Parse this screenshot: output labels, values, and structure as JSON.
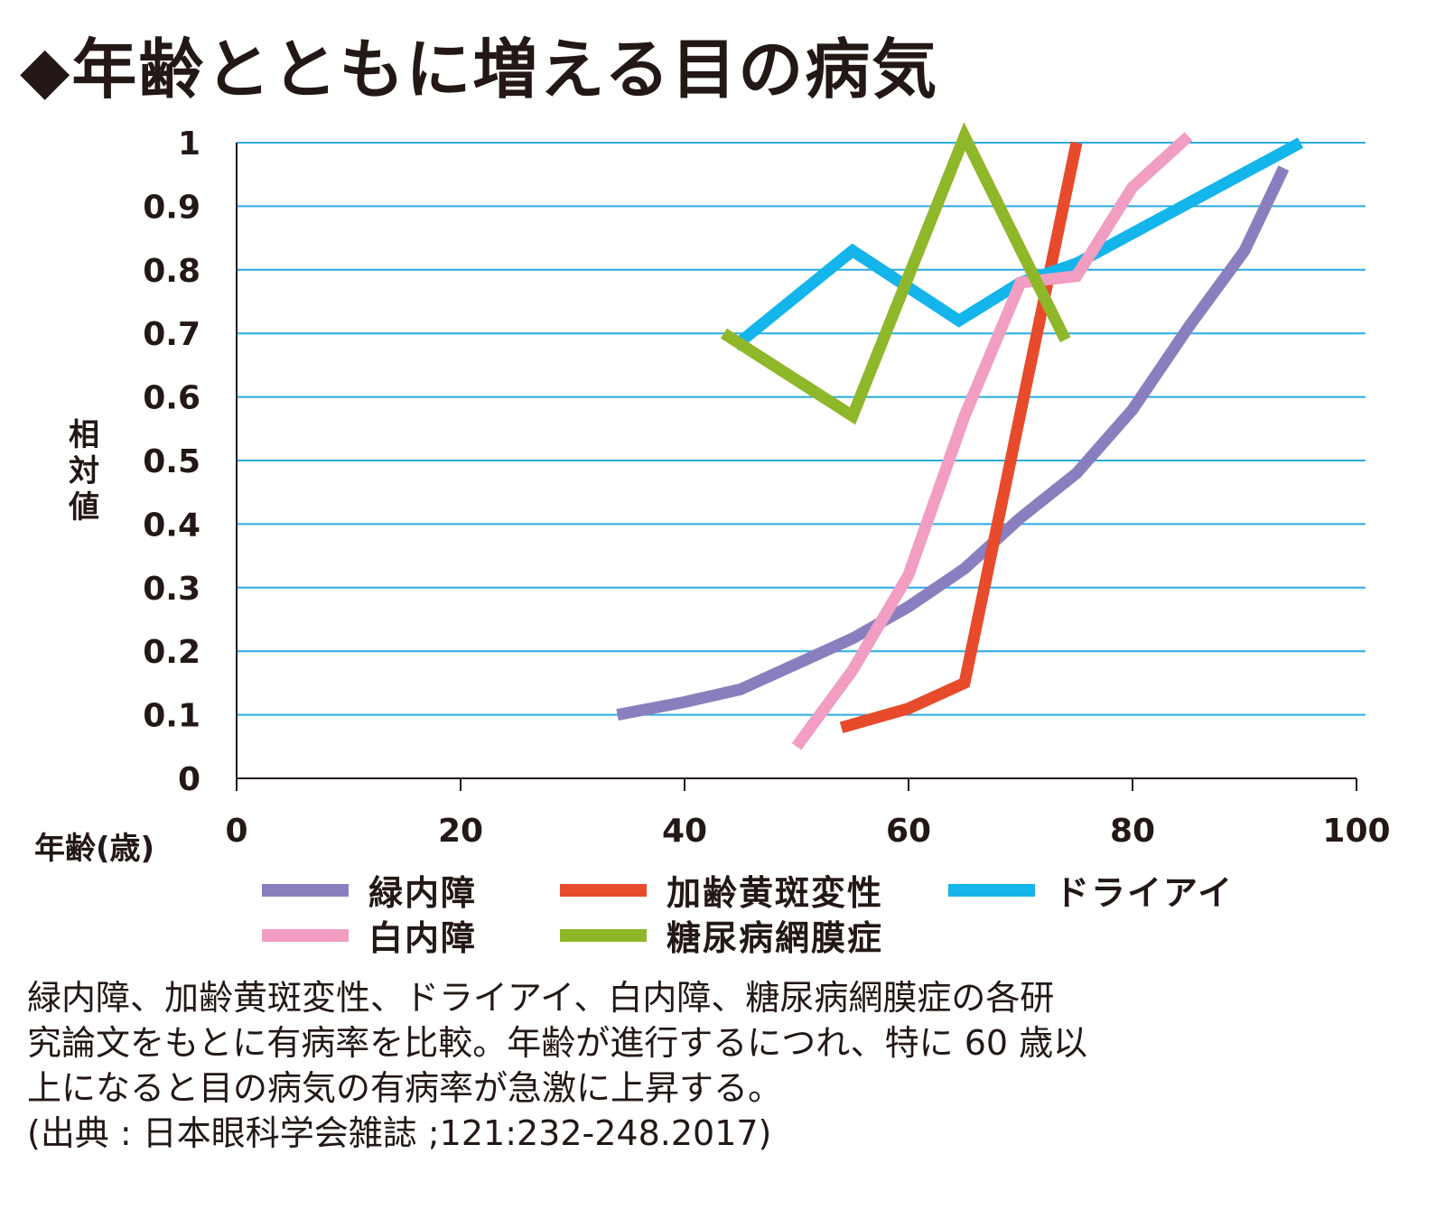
{
  "title": "◆年齢とともに増える目の病気",
  "chart_data": {
    "type": "line",
    "ylabel": "相対値",
    "xlabel": "年齢(歳)",
    "xlim": [
      0,
      100
    ],
    "ylim": [
      0,
      1
    ],
    "xticks": [
      "0",
      "20",
      "40",
      "60",
      "80",
      "100"
    ],
    "xtick_values": [
      0,
      20,
      40,
      60,
      80,
      100
    ],
    "yticks": [
      "0",
      "0.1",
      "0.2",
      "0.3",
      "0.4",
      "0.5",
      "0.6",
      "0.7",
      "0.8",
      "0.9",
      "1"
    ],
    "ytick_values": [
      0,
      0.1,
      0.2,
      0.3,
      0.4,
      0.5,
      0.6,
      0.7,
      0.8,
      0.9,
      1
    ],
    "grid": "horizontal",
    "gridColor": "#29abe2",
    "series": [
      {
        "name": "緑内障",
        "color": "#8a7fbe",
        "points": [
          [
            34,
            0.1
          ],
          [
            40,
            0.12
          ],
          [
            45,
            0.14
          ],
          [
            55,
            0.22
          ],
          [
            60,
            0.27
          ],
          [
            65,
            0.33
          ],
          [
            70,
            0.41
          ],
          [
            75,
            0.48
          ],
          [
            80,
            0.58
          ],
          [
            85,
            0.71
          ],
          [
            90,
            0.83
          ],
          [
            93.5,
            0.96
          ]
        ]
      },
      {
        "name": "加齢黄斑変性",
        "color": "#e84a2c",
        "points": [
          [
            54,
            0.08
          ],
          [
            60,
            0.11
          ],
          [
            65,
            0.15
          ],
          [
            75,
            1.0
          ]
        ]
      },
      {
        "name": "ドライアイ",
        "color": "#13b5ea",
        "points": [
          [
            44.5,
            0.68
          ],
          [
            55,
            0.83
          ],
          [
            64.5,
            0.72
          ],
          [
            70,
            0.78
          ],
          [
            75,
            0.81
          ],
          [
            95,
            1.0
          ]
        ]
      },
      {
        "name": "白内障",
        "color": "#f19ec2",
        "points": [
          [
            50,
            0.05
          ],
          [
            55,
            0.17
          ],
          [
            60,
            0.32
          ],
          [
            65,
            0.57
          ],
          [
            70,
            0.78
          ],
          [
            75,
            0.79
          ],
          [
            80,
            0.93
          ],
          [
            85,
            1.01
          ]
        ]
      },
      {
        "name": "糖尿病網膜症",
        "color": "#8fb72a",
        "points": [
          [
            43.5,
            0.7
          ],
          [
            55,
            0.57
          ],
          [
            65,
            1.01
          ],
          [
            74,
            0.69
          ]
        ]
      }
    ]
  },
  "caption": {
    "line1": "緑内障、加齢黄斑変性、ドライアイ、白内障、糖尿病網膜症の各研",
    "line2": "究論文をもとに有病率を比較。年齢が進行するにつれ、特に 60 歳以",
    "line3": "上になると目の病気の有病率が急激に上昇する。",
    "source": "(出典 : 日本眼科学会雑誌 ;121:232-248.2017)"
  }
}
